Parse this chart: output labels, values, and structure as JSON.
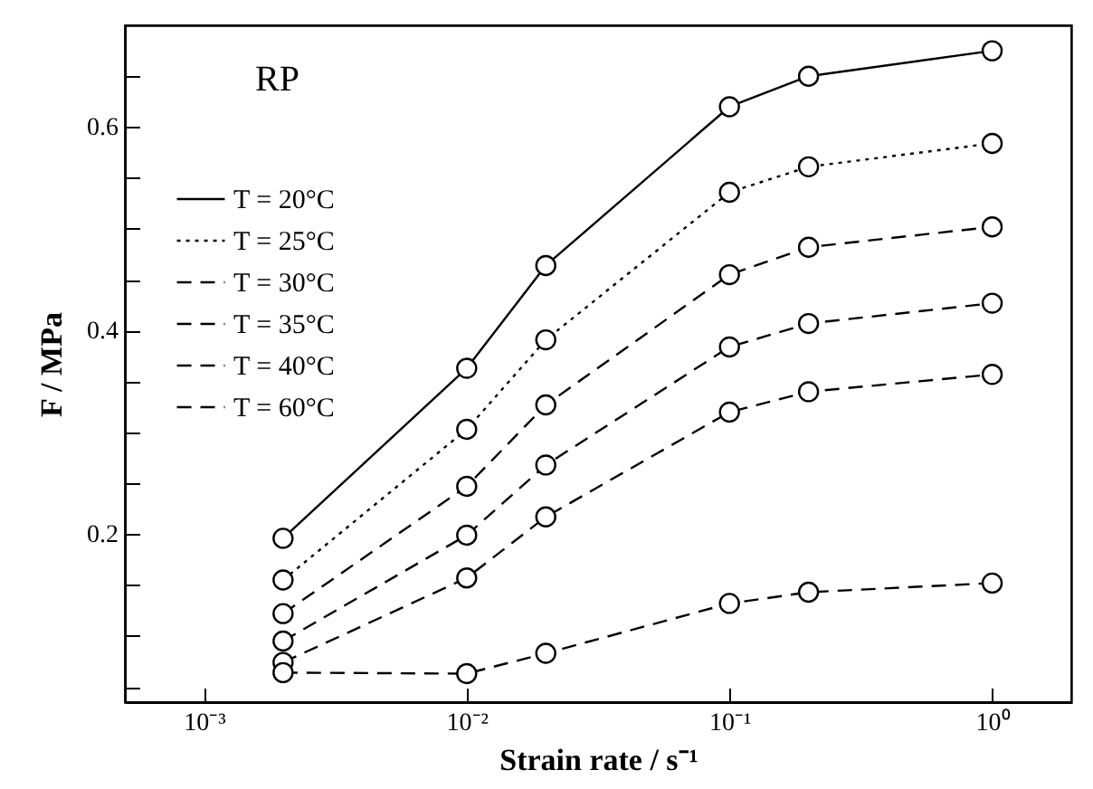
{
  "chart_data": {
    "type": "line",
    "xlabel": "Strain rate / s⁻¹",
    "ylabel": "F / MPa",
    "annotations": [
      "RP"
    ],
    "x": [
      0.002,
      0.01,
      0.02,
      0.1,
      0.2,
      1
    ],
    "series": [
      {
        "name": "T = 20°C",
        "color": "#000000",
        "line_style": "solid",
        "values": [
          0.196,
          0.363,
          0.464,
          0.62,
          0.65,
          0.675
        ]
      },
      {
        "name": "T = 25°C",
        "color": "#000000",
        "line_style": "dotted",
        "values": [
          0.155,
          0.303,
          0.391,
          0.536,
          0.561,
          0.584
        ]
      },
      {
        "name": "T = 30°C",
        "color": "#000000",
        "line_style": "dashed",
        "values": [
          0.122,
          0.247,
          0.327,
          0.455,
          0.482,
          0.502
        ]
      },
      {
        "name": "T = 35°C",
        "color": "#000000",
        "line_style": "dashed",
        "values": [
          0.095,
          0.199,
          0.268,
          0.384,
          0.407,
          0.427
        ]
      },
      {
        "name": "T = 40°C",
        "color": "#000000",
        "line_style": "dashed",
        "values": [
          0.074,
          0.157,
          0.217,
          0.32,
          0.34,
          0.357
        ]
      },
      {
        "name": "T = 60°C",
        "color": "#000000",
        "line_style": "dashed",
        "values": [
          0.064,
          0.063,
          0.083,
          0.132,
          0.143,
          0.152
        ]
      }
    ],
    "log": "x",
    "xlim": [
      0.0005,
      2
    ],
    "ylim": [
      0.035,
      0.7
    ],
    "xticks": [
      {
        "value": 0.001,
        "label": "10⁻³"
      },
      {
        "value": 0.01,
        "label": "10⁻²"
      },
      {
        "value": 0.1,
        "label": "10⁻¹"
      },
      {
        "value": 1,
        "label": "10⁰"
      }
    ],
    "yticks": [
      {
        "value": 0.05,
        "label": null
      },
      {
        "value": 0.1,
        "label": null
      },
      {
        "value": 0.15,
        "label": null
      },
      0.2,
      {
        "value": 0.25,
        "label": null
      },
      {
        "value": 0.3,
        "label": null
      },
      {
        "value": 0.35,
        "label": null
      },
      0.4,
      {
        "value": 0.45,
        "label": null
      },
      {
        "value": 0.5,
        "label": null
      },
      {
        "value": 0.55,
        "label": null
      },
      0.6,
      {
        "value": 0.65,
        "label": null
      }
    ],
    "grid": false,
    "legend": "top left",
    "marker": "circle"
  }
}
